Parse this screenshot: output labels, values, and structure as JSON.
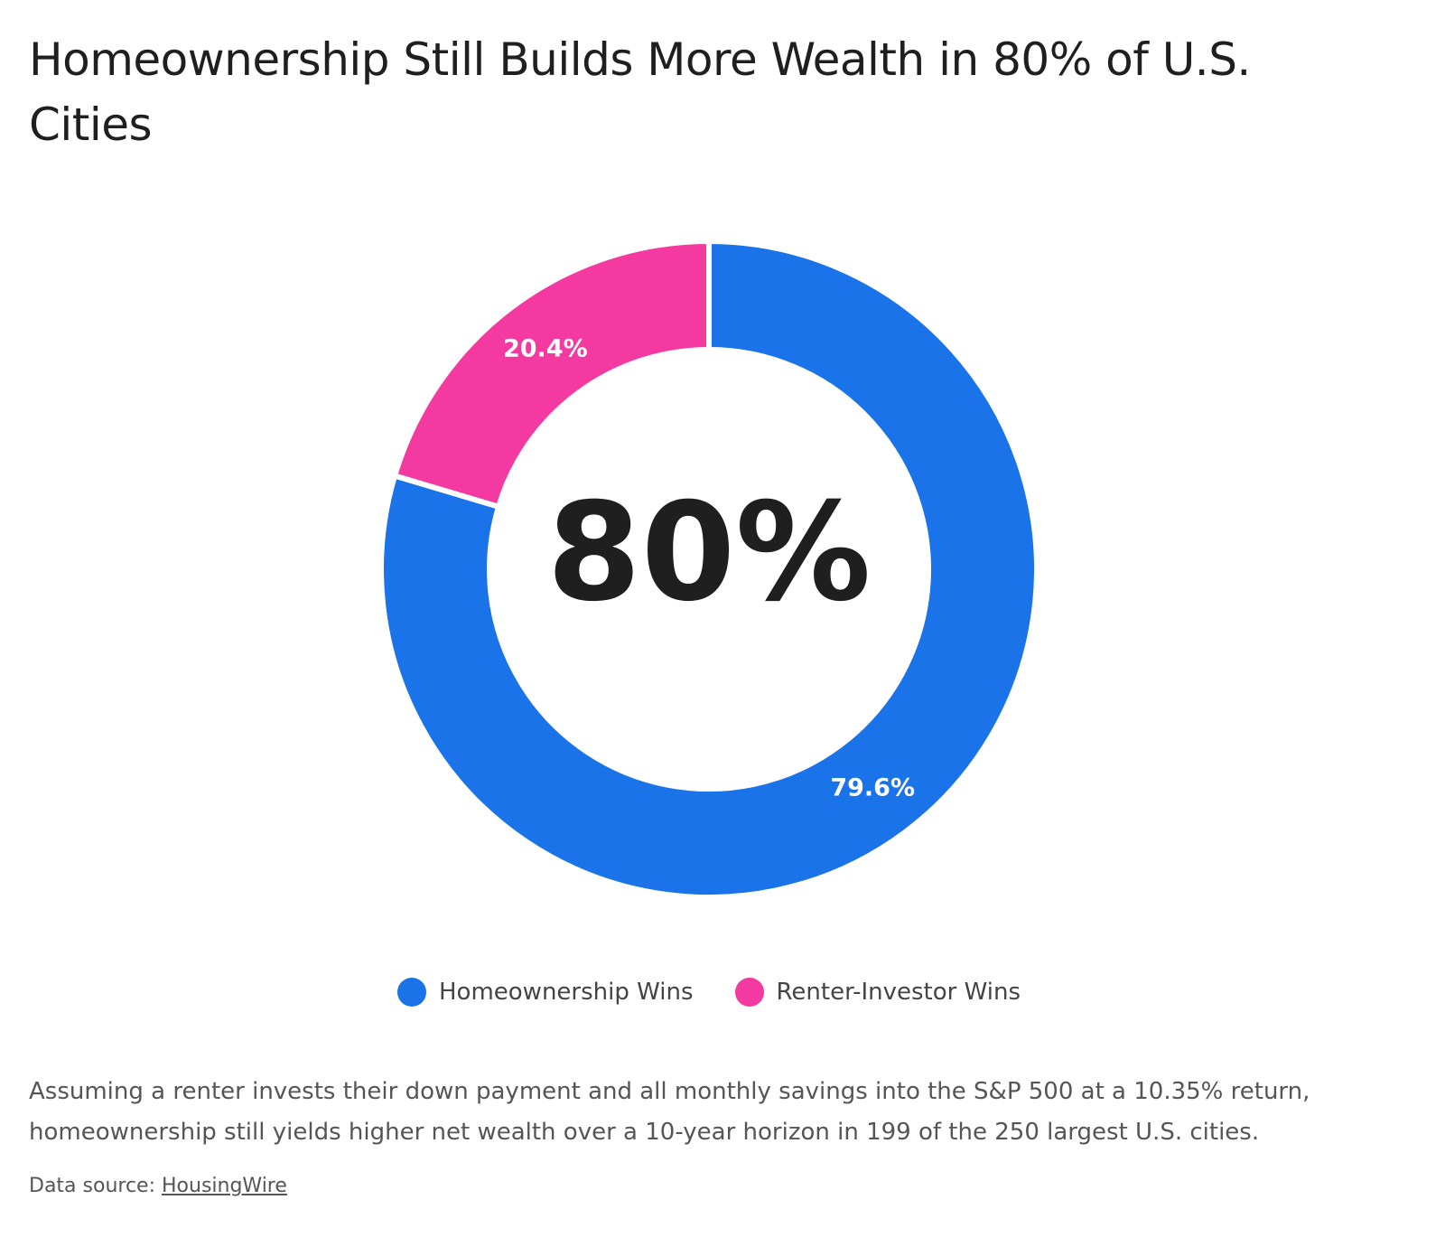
{
  "chart_data": {
    "type": "donut",
    "title": "Homeownership Still Builds More Wealth in 80% of U.S. Cities",
    "center_label": "80%",
    "series": [
      {
        "name": "Homeownership Wins",
        "color": "#1a73e8",
        "values": [
          79.6
        ],
        "value_labels": [
          "79.6%"
        ]
      },
      {
        "name": "Renter-Investor Wins",
        "color": "#f439a0",
        "values": [
          20.4
        ],
        "value_labels": [
          "20.4%"
        ]
      }
    ],
    "legend": "bottom",
    "description": "Assuming a renter invests their down payment and all monthly savings into the S&P 500 at a 10.35% return, homeownership still yields higher net wealth over a 10-year horizon in 199 of the 250 largest U.S. cities.",
    "source_prefix": "Data source:",
    "source_link": "HousingWire"
  }
}
